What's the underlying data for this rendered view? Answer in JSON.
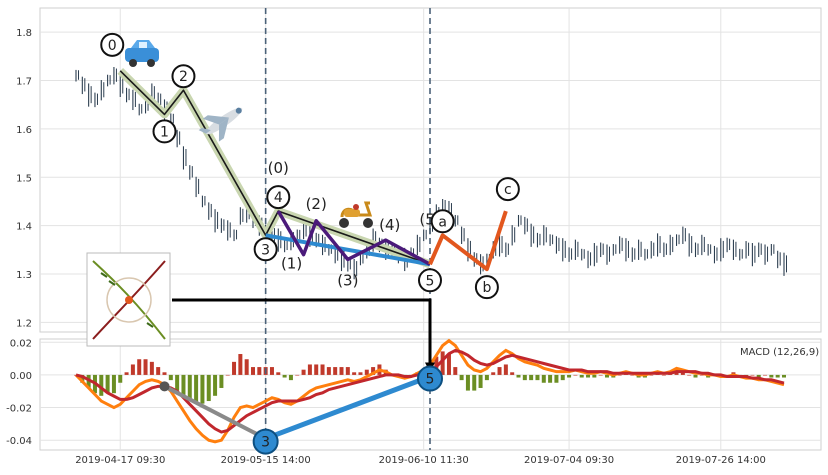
{
  "chart_data": {
    "type": "line",
    "price_panel": {
      "ylim": [
        1.18,
        1.85
      ],
      "yticks": [
        "1.2",
        "1.3",
        "1.4",
        "1.5",
        "1.6",
        "1.7",
        "1.8"
      ],
      "series_price": {
        "days": [
          0,
          1,
          2,
          3,
          4,
          5,
          6,
          7,
          8,
          9,
          10,
          11,
          12,
          13,
          14,
          15,
          16,
          17,
          18,
          19,
          20,
          21,
          22,
          23,
          24,
          25,
          26,
          27,
          28,
          29,
          30,
          31,
          32,
          33,
          34,
          35,
          36,
          37,
          38,
          39,
          40,
          41,
          42,
          43,
          44,
          45,
          46,
          47,
          48,
          49,
          50,
          51,
          52,
          53,
          54,
          55,
          56,
          57,
          58,
          59,
          60,
          61,
          62,
          63,
          64,
          65,
          66,
          67,
          68,
          69,
          70,
          71,
          72,
          73,
          74,
          75,
          76,
          77,
          78,
          79,
          80,
          81,
          82,
          83,
          84,
          85,
          86,
          87,
          88,
          89,
          90,
          91,
          92,
          93,
          94,
          95,
          96,
          97,
          98,
          99,
          100,
          101,
          102,
          103,
          104,
          105,
          106,
          107,
          108,
          109,
          110,
          111,
          112
        ],
        "values": [
          1.71,
          1.69,
          1.67,
          1.66,
          1.68,
          1.7,
          1.71,
          1.69,
          1.67,
          1.66,
          1.64,
          1.65,
          1.67,
          1.66,
          1.64,
          1.62,
          1.58,
          1.54,
          1.51,
          1.48,
          1.45,
          1.43,
          1.41,
          1.4,
          1.39,
          1.38,
          1.42,
          1.43,
          1.41,
          1.4,
          1.39,
          1.38,
          1.37,
          1.36,
          1.37,
          1.38,
          1.39,
          1.38,
          1.37,
          1.36,
          1.35,
          1.34,
          1.33,
          1.32,
          1.31,
          1.33,
          1.35,
          1.37,
          1.36,
          1.35,
          1.35,
          1.34,
          1.33,
          1.34,
          1.36,
          1.38,
          1.4,
          1.42,
          1.44,
          1.43,
          1.41,
          1.38,
          1.35,
          1.33,
          1.32,
          1.33,
          1.35,
          1.36,
          1.35,
          1.38,
          1.41,
          1.4,
          1.38,
          1.37,
          1.38,
          1.37,
          1.36,
          1.35,
          1.34,
          1.35,
          1.34,
          1.33,
          1.34,
          1.35,
          1.34,
          1.35,
          1.36,
          1.35,
          1.34,
          1.35,
          1.34,
          1.35,
          1.36,
          1.35,
          1.36,
          1.37,
          1.38,
          1.36,
          1.35,
          1.36,
          1.35,
          1.34,
          1.35,
          1.36,
          1.35,
          1.34,
          1.35,
          1.34,
          1.35,
          1.34,
          1.35,
          1.33,
          1.32
        ]
      },
      "wave_main": {
        "days": [
          7,
          14,
          17,
          30,
          32,
          56
        ],
        "values": [
          1.72,
          1.63,
          1.68,
          1.38,
          1.43,
          1.32
        ],
        "labels": [
          "0",
          "1",
          "2",
          "3",
          "4",
          "5"
        ]
      },
      "wave_sub": {
        "days": [
          32,
          36,
          38,
          43,
          49,
          56
        ],
        "values": [
          1.43,
          1.34,
          1.41,
          1.33,
          1.37,
          1.32
        ],
        "labels": [
          "(0)",
          "(1)",
          "(2)",
          "(3)",
          "(4)",
          "(5)"
        ]
      },
      "wave_correction": {
        "days": [
          56,
          58,
          65,
          68
        ],
        "values": [
          1.32,
          1.38,
          1.31,
          1.43
        ],
        "labels": [
          "a",
          "b",
          "c"
        ]
      }
    },
    "macd_panel": {
      "title": "MACD (12,26,9)",
      "ylim": [
        -0.046,
        0.022
      ],
      "yticks": [
        "0.02",
        "0.00",
        "-0.02",
        "-0.04"
      ],
      "macd_values": [
        0.0,
        -0.004,
        -0.008,
        -0.012,
        -0.016,
        -0.018,
        -0.02,
        -0.018,
        -0.014,
        -0.01,
        -0.006,
        -0.004,
        -0.003,
        -0.004,
        -0.006,
        -0.01,
        -0.016,
        -0.022,
        -0.028,
        -0.033,
        -0.037,
        -0.04,
        -0.041,
        -0.04,
        -0.034,
        -0.026,
        -0.02,
        -0.019,
        -0.02,
        -0.018,
        -0.016,
        -0.014,
        -0.015,
        -0.017,
        -0.018,
        -0.016,
        -0.013,
        -0.01,
        -0.008,
        -0.007,
        -0.006,
        -0.005,
        -0.004,
        -0.003,
        -0.004,
        -0.003,
        -0.001,
        0.001,
        0.003,
        0.002,
        0.0,
        -0.001,
        -0.002,
        -0.001,
        0.001,
        0.003,
        0.006,
        0.012,
        0.018,
        0.021,
        0.018,
        0.012,
        0.006,
        0.003,
        0.002,
        0.004,
        0.008,
        0.012,
        0.015,
        0.013,
        0.01,
        0.008,
        0.007,
        0.006,
        0.004,
        0.003,
        0.002,
        0.002,
        0.002,
        0.003,
        0.002,
        0.001,
        0.001,
        0.002,
        0.001,
        0.0,
        0.001,
        0.002,
        0.001,
        0.0,
        0.0,
        0.001,
        0.002,
        0.001,
        0.002,
        0.004,
        0.003,
        0.002,
        0.001,
        0.001,
        0.0,
        0.0,
        -0.001,
        -0.001,
        0.0,
        -0.001,
        -0.002,
        -0.002,
        -0.003,
        -0.003,
        -0.004,
        -0.005,
        -0.006
      ],
      "signal_values": [
        0.0,
        -0.001,
        -0.003,
        -0.005,
        -0.008,
        -0.011,
        -0.013,
        -0.015,
        -0.015,
        -0.014,
        -0.012,
        -0.01,
        -0.008,
        -0.007,
        -0.007,
        -0.008,
        -0.01,
        -0.014,
        -0.018,
        -0.022,
        -0.026,
        -0.03,
        -0.033,
        -0.035,
        -0.034,
        -0.031,
        -0.028,
        -0.025,
        -0.023,
        -0.021,
        -0.019,
        -0.017,
        -0.016,
        -0.016,
        -0.016,
        -0.016,
        -0.015,
        -0.014,
        -0.012,
        -0.011,
        -0.009,
        -0.008,
        -0.007,
        -0.006,
        -0.005,
        -0.004,
        -0.003,
        -0.002,
        -0.001,
        0.0,
        0.0,
        0.0,
        -0.001,
        -0.001,
        0.0,
        0.001,
        0.002,
        0.005,
        0.009,
        0.013,
        0.015,
        0.014,
        0.012,
        0.009,
        0.007,
        0.006,
        0.007,
        0.009,
        0.011,
        0.012,
        0.011,
        0.01,
        0.009,
        0.008,
        0.007,
        0.006,
        0.005,
        0.004,
        0.003,
        0.003,
        0.003,
        0.002,
        0.002,
        0.002,
        0.002,
        0.001,
        0.001,
        0.001,
        0.001,
        0.001,
        0.001,
        0.001,
        0.001,
        0.001,
        0.001,
        0.002,
        0.002,
        0.002,
        0.002,
        0.001,
        0.001,
        0.0,
        0.0,
        -0.001,
        -0.001,
        -0.001,
        -0.001,
        -0.002,
        -0.002,
        -0.003,
        -0.003,
        -0.004,
        -0.005
      ],
      "divergence": {
        "days": [
          30,
          56
        ],
        "values": [
          -0.039,
          -0.001
        ],
        "labels": [
          "3",
          "5"
        ]
      },
      "grey_point": {
        "day": 14,
        "value": -0.007
      }
    },
    "x_axis": {
      "tick_days": [
        7,
        30,
        55,
        78,
        102
      ],
      "tick_labels": [
        "2019-04-17 09:30",
        "2019-05-15 14:00",
        "2019-06-10 11:30",
        "2019-07-04 09:30",
        "2019-07-26 14:00"
      ],
      "dashed_lines_days": [
        30,
        56
      ]
    },
    "colors": {
      "price": "#2c3e50",
      "wave_main": "#1a1a1a",
      "wave_main_glow": "#c9d6b0",
      "wave_sub": "#4b1a7a",
      "wave_corr": "#e2571e",
      "trend_blue": "#2e8ad0",
      "macd": "#ff7f0e",
      "signal": "#c1272d",
      "hist_pos": "#c0392b",
      "hist_neg": "#6b8e23",
      "dashed": "#4a6178"
    }
  }
}
